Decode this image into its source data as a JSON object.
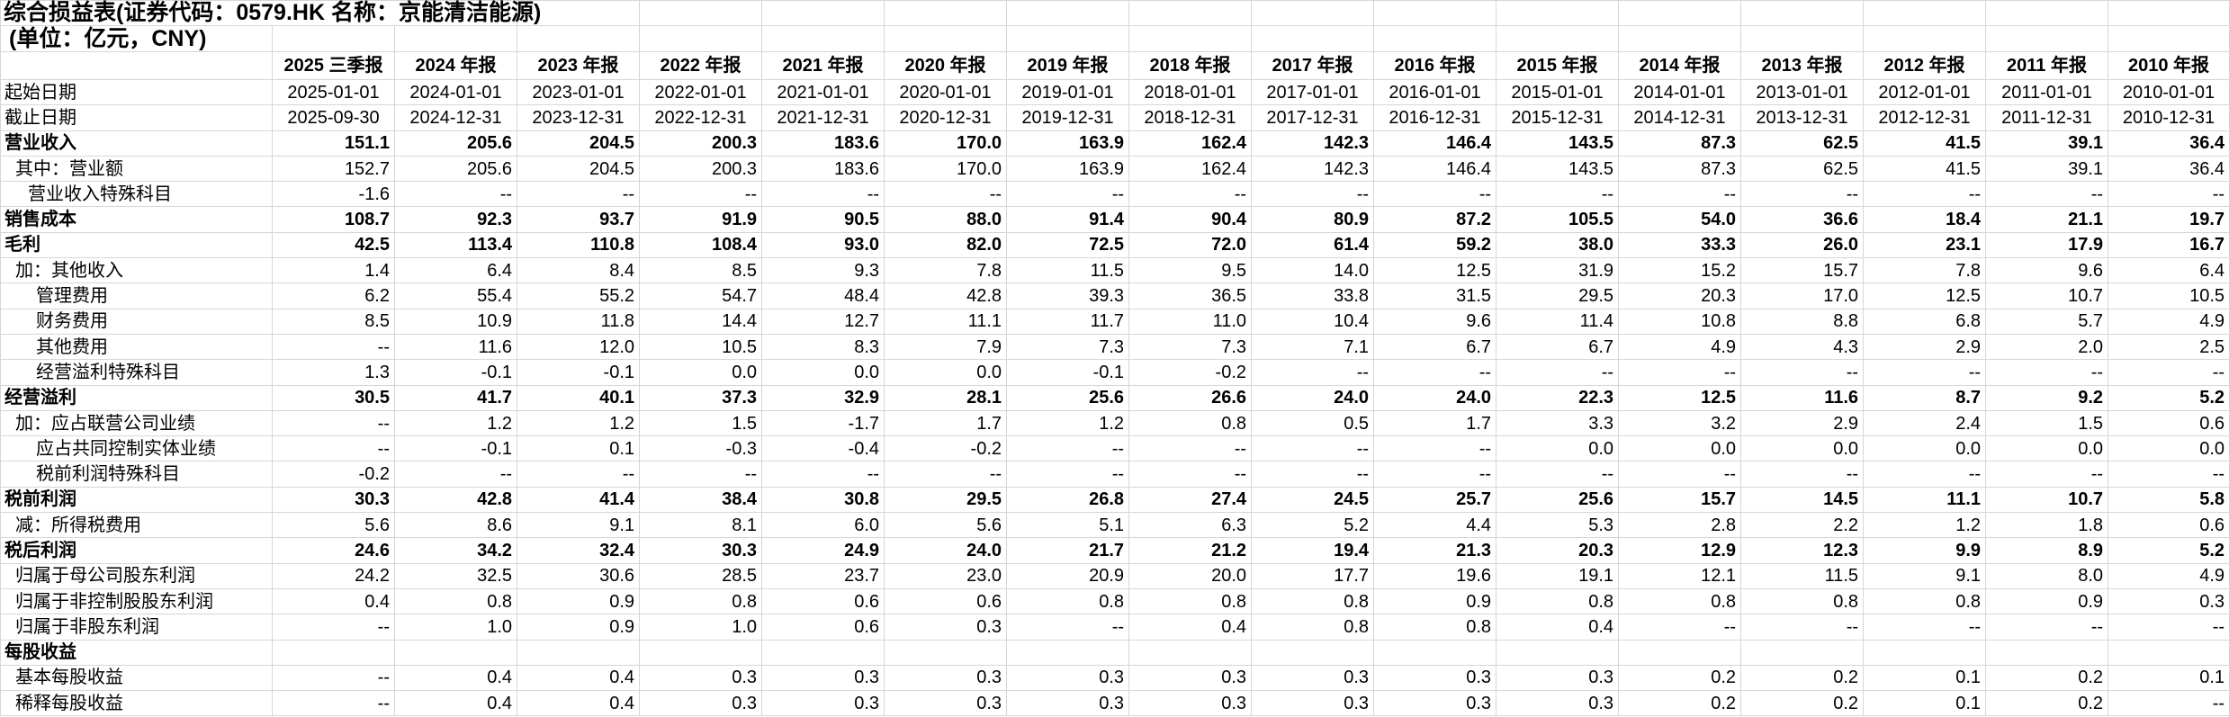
{
  "title": "综合损益表(证券代码：0579.HK 名称：京能清洁能源)",
  "unit_line": "(单位：亿元，CNY)",
  "columns": [
    "2025 三季报",
    "2024 年报",
    "2023 年报",
    "2022 年报",
    "2021 年报",
    "2020 年报",
    "2019 年报",
    "2018 年报",
    "2017 年报",
    "2016 年报",
    "2015 年报",
    "2014 年报",
    "2013 年报",
    "2012 年报",
    "2011 年报",
    "2010 年报"
  ],
  "rows": [
    {
      "label": "起始日期",
      "indent": 0,
      "bold": false,
      "center": true,
      "values": [
        "2025-01-01",
        "2024-01-01",
        "2023-01-01",
        "2022-01-01",
        "2021-01-01",
        "2020-01-01",
        "2019-01-01",
        "2018-01-01",
        "2017-01-01",
        "2016-01-01",
        "2015-01-01",
        "2014-01-01",
        "2013-01-01",
        "2012-01-01",
        "2011-01-01",
        "2010-01-01"
      ]
    },
    {
      "label": "截止日期",
      "indent": 0,
      "bold": false,
      "center": true,
      "values": [
        "2025-09-30",
        "2024-12-31",
        "2023-12-31",
        "2022-12-31",
        "2021-12-31",
        "2020-12-31",
        "2019-12-31",
        "2018-12-31",
        "2017-12-31",
        "2016-12-31",
        "2015-12-31",
        "2014-12-31",
        "2013-12-31",
        "2012-12-31",
        "2011-12-31",
        "2010-12-31"
      ]
    },
    {
      "label": "营业收入",
      "indent": 0,
      "bold": true,
      "center": false,
      "values": [
        "151.1",
        "205.6",
        "204.5",
        "200.3",
        "183.6",
        "170.0",
        "163.9",
        "162.4",
        "142.3",
        "146.4",
        "143.5",
        "87.3",
        "62.5",
        "41.5",
        "39.1",
        "36.4"
      ]
    },
    {
      "label": "其中：营业额",
      "indent": 1,
      "bold": false,
      "center": false,
      "values": [
        "152.7",
        "205.6",
        "204.5",
        "200.3",
        "183.6",
        "170.0",
        "163.9",
        "162.4",
        "142.3",
        "146.4",
        "143.5",
        "87.3",
        "62.5",
        "41.5",
        "39.1",
        "36.4"
      ]
    },
    {
      "label": "营业收入特殊科目",
      "indent": 2,
      "bold": false,
      "center": false,
      "values": [
        "-1.6",
        "--",
        "--",
        "--",
        "--",
        "--",
        "--",
        "--",
        "--",
        "--",
        "--",
        "--",
        "--",
        "--",
        "--",
        "--"
      ]
    },
    {
      "label": "销售成本",
      "indent": 0,
      "bold": true,
      "center": false,
      "values": [
        "108.7",
        "92.3",
        "93.7",
        "91.9",
        "90.5",
        "88.0",
        "91.4",
        "90.4",
        "80.9",
        "87.2",
        "105.5",
        "54.0",
        "36.6",
        "18.4",
        "21.1",
        "19.7"
      ]
    },
    {
      "label": "毛利",
      "indent": 0,
      "bold": true,
      "center": false,
      "values": [
        "42.5",
        "113.4",
        "110.8",
        "108.4",
        "93.0",
        "82.0",
        "72.5",
        "72.0",
        "61.4",
        "59.2",
        "38.0",
        "33.3",
        "26.0",
        "23.1",
        "17.9",
        "16.7"
      ]
    },
    {
      "label": "加：其他收入",
      "indent": 1,
      "bold": false,
      "center": false,
      "values": [
        "1.4",
        "6.4",
        "8.4",
        "8.5",
        "9.3",
        "7.8",
        "11.5",
        "9.5",
        "14.0",
        "12.5",
        "31.9",
        "15.2",
        "15.7",
        "7.8",
        "9.6",
        "6.4"
      ]
    },
    {
      "label": "管理费用",
      "indent": 3,
      "bold": false,
      "center": false,
      "values": [
        "6.2",
        "55.4",
        "55.2",
        "54.7",
        "48.4",
        "42.8",
        "39.3",
        "36.5",
        "33.8",
        "31.5",
        "29.5",
        "20.3",
        "17.0",
        "12.5",
        "10.7",
        "10.5"
      ]
    },
    {
      "label": "财务费用",
      "indent": 3,
      "bold": false,
      "center": false,
      "values": [
        "8.5",
        "10.9",
        "11.8",
        "14.4",
        "12.7",
        "11.1",
        "11.7",
        "11.0",
        "10.4",
        "9.6",
        "11.4",
        "10.8",
        "8.8",
        "6.8",
        "5.7",
        "4.9"
      ]
    },
    {
      "label": "其他费用",
      "indent": 3,
      "bold": false,
      "center": false,
      "values": [
        "--",
        "11.6",
        "12.0",
        "10.5",
        "8.3",
        "7.9",
        "7.3",
        "7.3",
        "7.1",
        "6.7",
        "6.7",
        "4.9",
        "4.3",
        "2.9",
        "2.0",
        "2.5"
      ]
    },
    {
      "label": "经营溢利特殊科目",
      "indent": 3,
      "bold": false,
      "center": false,
      "values": [
        "1.3",
        "-0.1",
        "-0.1",
        "0.0",
        "0.0",
        "0.0",
        "-0.1",
        "-0.2",
        "--",
        "--",
        "--",
        "--",
        "--",
        "--",
        "--",
        "--"
      ]
    },
    {
      "label": "经营溢利",
      "indent": 0,
      "bold": true,
      "center": false,
      "values": [
        "30.5",
        "41.7",
        "40.1",
        "37.3",
        "32.9",
        "28.1",
        "25.6",
        "26.6",
        "24.0",
        "24.0",
        "22.3",
        "12.5",
        "11.6",
        "8.7",
        "9.2",
        "5.2"
      ]
    },
    {
      "label": "加：应占联营公司业绩",
      "indent": 1,
      "bold": false,
      "center": false,
      "values": [
        "--",
        "1.2",
        "1.2",
        "1.5",
        "-1.7",
        "1.7",
        "1.2",
        "0.8",
        "0.5",
        "1.7",
        "3.3",
        "3.2",
        "2.9",
        "2.4",
        "1.5",
        "0.6"
      ]
    },
    {
      "label": "应占共同控制实体业绩",
      "indent": 3,
      "bold": false,
      "center": false,
      "values": [
        "--",
        "-0.1",
        "0.1",
        "-0.3",
        "-0.4",
        "-0.2",
        "--",
        "--",
        "--",
        "--",
        "0.0",
        "0.0",
        "0.0",
        "0.0",
        "0.0",
        "0.0"
      ]
    },
    {
      "label": "税前利润特殊科目",
      "indent": 3,
      "bold": false,
      "center": false,
      "values": [
        "-0.2",
        "--",
        "--",
        "--",
        "--",
        "--",
        "--",
        "--",
        "--",
        "--",
        "--",
        "--",
        "--",
        "--",
        "--",
        "--"
      ]
    },
    {
      "label": "税前利润",
      "indent": 0,
      "bold": true,
      "center": false,
      "values": [
        "30.3",
        "42.8",
        "41.4",
        "38.4",
        "30.8",
        "29.5",
        "26.8",
        "27.4",
        "24.5",
        "25.7",
        "25.6",
        "15.7",
        "14.5",
        "11.1",
        "10.7",
        "5.8"
      ]
    },
    {
      "label": "减：所得税费用",
      "indent": 1,
      "bold": false,
      "center": false,
      "values": [
        "5.6",
        "8.6",
        "9.1",
        "8.1",
        "6.0",
        "5.6",
        "5.1",
        "6.3",
        "5.2",
        "4.4",
        "5.3",
        "2.8",
        "2.2",
        "1.2",
        "1.8",
        "0.6"
      ]
    },
    {
      "label": "税后利润",
      "indent": 0,
      "bold": true,
      "center": false,
      "values": [
        "24.6",
        "34.2",
        "32.4",
        "30.3",
        "24.9",
        "24.0",
        "21.7",
        "21.2",
        "19.4",
        "21.3",
        "20.3",
        "12.9",
        "12.3",
        "9.9",
        "8.9",
        "5.2"
      ]
    },
    {
      "label": "归属于母公司股东利润",
      "indent": 1,
      "bold": false,
      "center": false,
      "values": [
        "24.2",
        "32.5",
        "30.6",
        "28.5",
        "23.7",
        "23.0",
        "20.9",
        "20.0",
        "17.7",
        "19.6",
        "19.1",
        "12.1",
        "11.5",
        "9.1",
        "8.0",
        "4.9"
      ]
    },
    {
      "label": "归属于非控制股股东利润",
      "indent": 1,
      "bold": false,
      "center": false,
      "values": [
        "0.4",
        "0.8",
        "0.9",
        "0.8",
        "0.6",
        "0.6",
        "0.8",
        "0.8",
        "0.8",
        "0.9",
        "0.8",
        "0.8",
        "0.8",
        "0.8",
        "0.9",
        "0.3"
      ]
    },
    {
      "label": "归属于非股东利润",
      "indent": 1,
      "bold": false,
      "center": false,
      "values": [
        "--",
        "1.0",
        "0.9",
        "1.0",
        "0.6",
        "0.3",
        "--",
        "0.4",
        "0.8",
        "0.8",
        "0.4",
        "--",
        "--",
        "--",
        "--",
        "--"
      ]
    },
    {
      "label": "每股收益",
      "indent": 0,
      "bold": true,
      "center": false,
      "values": [
        "",
        "",
        "",
        "",
        "",
        "",
        "",
        "",
        "",
        "",
        "",
        "",
        "",
        "",
        "",
        ""
      ]
    },
    {
      "label": "基本每股收益",
      "indent": 1,
      "bold": false,
      "center": false,
      "values": [
        "--",
        "0.4",
        "0.4",
        "0.3",
        "0.3",
        "0.3",
        "0.3",
        "0.3",
        "0.3",
        "0.3",
        "0.3",
        "0.2",
        "0.2",
        "0.1",
        "0.2",
        "0.1"
      ]
    },
    {
      "label": "稀释每股收益",
      "indent": 1,
      "bold": false,
      "center": false,
      "values": [
        "--",
        "0.4",
        "0.4",
        "0.3",
        "0.3",
        "0.3",
        "0.3",
        "0.3",
        "0.3",
        "0.3",
        "0.3",
        "0.2",
        "0.2",
        "0.1",
        "0.2",
        "--"
      ]
    }
  ]
}
